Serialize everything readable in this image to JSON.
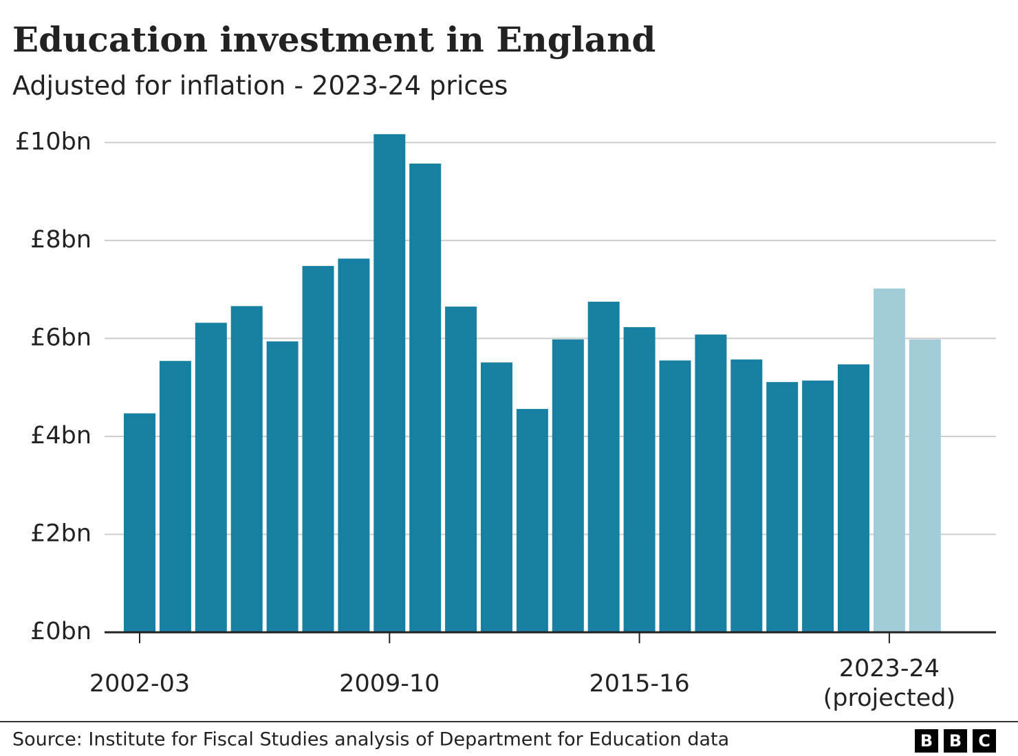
{
  "chart_data": {
    "type": "bar",
    "title": "Education investment in England",
    "subtitle": "Adjusted for inflation - 2023-24 prices",
    "categories": [
      "2002-03",
      null,
      null,
      null,
      null,
      null,
      null,
      "2009-10",
      null,
      null,
      null,
      null,
      null,
      null,
      "2015-16",
      null,
      null,
      null,
      null,
      null,
      null,
      "2023-24\n(projected)",
      null
    ],
    "values": [
      4.47,
      5.54,
      6.32,
      6.66,
      5.94,
      7.48,
      7.63,
      10.17,
      9.57,
      6.65,
      5.51,
      4.56,
      5.98,
      6.75,
      6.23,
      5.55,
      6.08,
      5.57,
      5.11,
      5.14,
      5.47,
      7.02,
      5.98
    ],
    "colors": [
      "#167fa2",
      "#167fa2",
      "#167fa2",
      "#167fa2",
      "#167fa2",
      "#167fa2",
      "#167fa2",
      "#167fa2",
      "#167fa2",
      "#167fa2",
      "#167fa2",
      "#167fa2",
      "#167fa2",
      "#167fa2",
      "#167fa2",
      "#167fa2",
      "#167fa2",
      "#167fa2",
      "#167fa2",
      "#167fa2",
      "#167fa2",
      "#a3ccd9",
      "#a3ccd9"
    ],
    "ylim": [
      0,
      10.3
    ],
    "yticks": [
      {
        "value": 0,
        "label": "£0bn"
      },
      {
        "value": 2,
        "label": "£2bn"
      },
      {
        "value": 4,
        "label": "£4bn"
      },
      {
        "value": 6,
        "label": "£6bn"
      },
      {
        "value": 8,
        "label": "£8bn"
      },
      {
        "value": 10,
        "label": "£10bn"
      }
    ],
    "grid": true,
    "source": "Source: Institute for Fiscal Studies analysis of Department for Education data",
    "brand": "BBC"
  }
}
